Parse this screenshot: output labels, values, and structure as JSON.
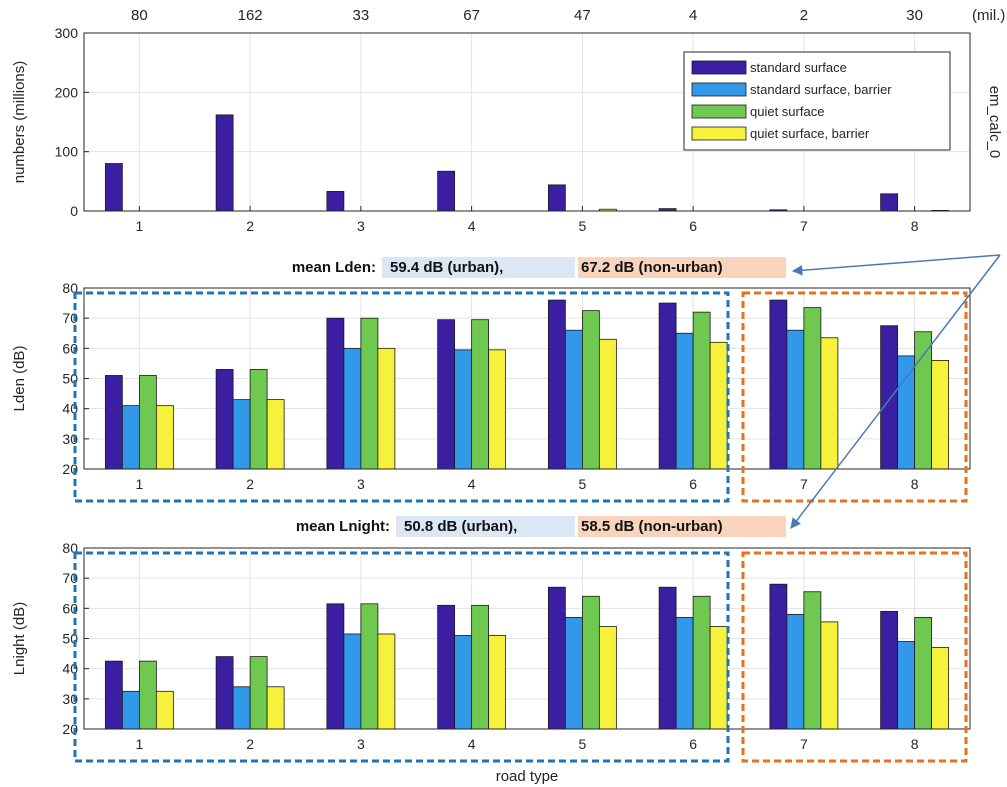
{
  "colors": {
    "series": [
      "#3a1fa2",
      "#3298e9",
      "#6fc850",
      "#f6f13a"
    ],
    "urban_box": "#1f74b4",
    "nonurban_box": "#e8721c",
    "urban_bg": "#dbe7f4",
    "nonurban_bg": "#f9d4bd",
    "arrow": "#4a7ab6"
  },
  "chart_data": [
    {
      "type": "bar",
      "ylabel": "numbers (millions)",
      "right_label": "em_calc_0",
      "ylim": [
        0,
        300
      ],
      "yticks": [
        0,
        100,
        200,
        300
      ],
      "categories": [
        "1",
        "2",
        "3",
        "4",
        "5",
        "6",
        "7",
        "8"
      ],
      "top_labels": [
        "80",
        "162",
        "33",
        "67",
        "47",
        "4",
        "2",
        "30"
      ],
      "top_unit": "(mil.)",
      "grid": true,
      "legend_position": "top-right",
      "series": [
        {
          "name": "standard surface",
          "values": [
            80,
            162,
            33,
            67,
            44,
            4,
            2,
            29
          ]
        },
        {
          "name": "standard surface, barrier",
          "values": [
            0,
            0,
            0,
            0,
            0,
            0,
            0,
            0
          ]
        },
        {
          "name": "quiet surface",
          "values": [
            0,
            0,
            0,
            0,
            0,
            0,
            0,
            0
          ]
        },
        {
          "name": "quiet surface, barrier",
          "values": [
            0,
            0,
            0,
            0,
            3,
            0,
            0,
            1
          ]
        }
      ]
    },
    {
      "type": "bar",
      "ylabel": "Lden (dB)",
      "ylim": [
        20,
        80
      ],
      "yticks": [
        20,
        30,
        40,
        50,
        60,
        70,
        80
      ],
      "categories": [
        "1",
        "2",
        "3",
        "4",
        "5",
        "6",
        "7",
        "8"
      ],
      "grid": true,
      "mean": {
        "prefix": "mean Lden:",
        "urban": "59.4 dB (urban),",
        "nonurban": "67.2 dB (non-urban)"
      },
      "series": [
        {
          "name": "standard surface",
          "values": [
            51,
            53,
            70,
            69.5,
            76,
            75,
            76,
            67.5
          ]
        },
        {
          "name": "standard surface, barrier",
          "values": [
            41,
            43,
            60,
            59.5,
            66,
            65,
            66,
            57.5
          ]
        },
        {
          "name": "quiet surface",
          "values": [
            51,
            53,
            70,
            69.5,
            72.5,
            72,
            73.5,
            65.5
          ]
        },
        {
          "name": "quiet surface, barrier",
          "values": [
            41,
            43,
            60,
            59.5,
            63,
            62,
            63.5,
            56
          ]
        }
      ]
    },
    {
      "type": "bar",
      "ylabel": "Lnight (dB)",
      "xlabel": "road type",
      "ylim": [
        20,
        80
      ],
      "yticks": [
        20,
        30,
        40,
        50,
        60,
        70,
        80
      ],
      "categories": [
        "1",
        "2",
        "3",
        "4",
        "5",
        "6",
        "7",
        "8"
      ],
      "grid": true,
      "mean": {
        "prefix": "mean Lnight:",
        "urban": "50.8 dB (urban),",
        "nonurban": "58.5 dB (non-urban)"
      },
      "series": [
        {
          "name": "standard surface",
          "values": [
            42.5,
            44,
            61.5,
            61,
            67,
            67,
            68,
            59
          ]
        },
        {
          "name": "standard surface, barrier",
          "values": [
            32.5,
            34,
            51.5,
            51,
            57,
            57,
            58,
            49
          ]
        },
        {
          "name": "quiet surface",
          "values": [
            42.5,
            44,
            61.5,
            61,
            64,
            64,
            65.5,
            57
          ]
        },
        {
          "name": "quiet surface, barrier",
          "values": [
            32.5,
            34,
            51.5,
            51,
            54,
            54,
            55.5,
            47
          ]
        }
      ]
    }
  ]
}
